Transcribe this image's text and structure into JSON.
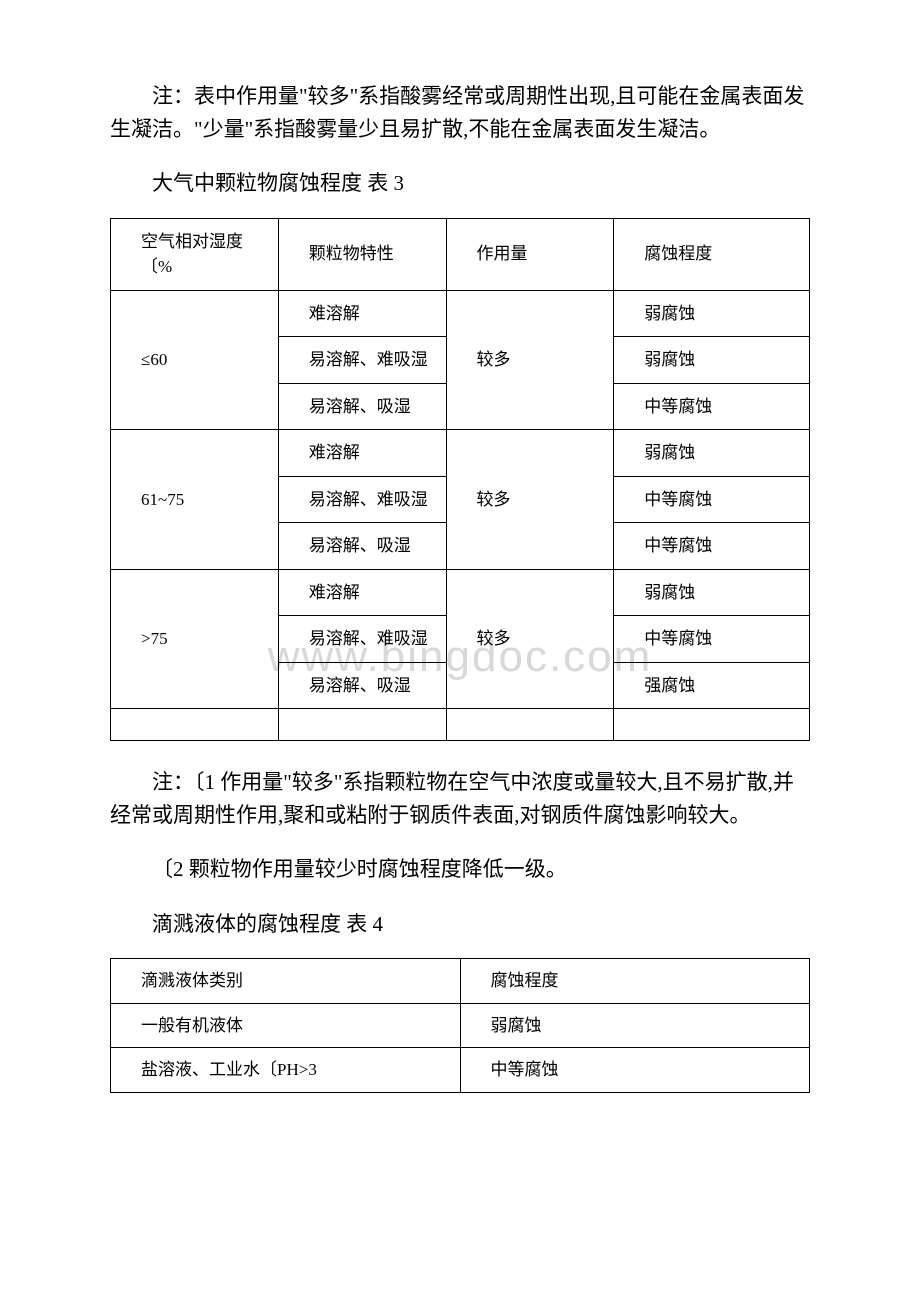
{
  "watermark": "www.bingdoc.com",
  "para1": "注：表中作用量\"较多\"系指酸雾经常或周期性出现,且可能在金属表面发生凝洁。\"少量\"系指酸雾量少且易扩散,不能在金属表面发生凝洁。",
  "table3_title": "大气中颗粒物腐蚀程度 表 3",
  "table3": {
    "headers": {
      "c1": "空气相对湿度〔%",
      "c2": "颗粒物特性",
      "c3": "作用量",
      "c4": "腐蚀程度"
    },
    "groups": [
      {
        "humidity": "≤60",
        "amount": "较多",
        "rows": [
          {
            "property": "难溶解",
            "degree": "弱腐蚀"
          },
          {
            "property": "易溶解、难吸湿",
            "degree": "弱腐蚀"
          },
          {
            "property": "易溶解、吸湿",
            "degree": "中等腐蚀"
          }
        ]
      },
      {
        "humidity": "61~75",
        "amount": "较多",
        "rows": [
          {
            "property": "难溶解",
            "degree": "弱腐蚀"
          },
          {
            "property": "易溶解、难吸湿",
            "degree": "中等腐蚀"
          },
          {
            "property": "易溶解、吸湿",
            "degree": "中等腐蚀"
          }
        ]
      },
      {
        "humidity": ">75",
        "amount": "较多",
        "rows": [
          {
            "property": "难溶解",
            "degree": "弱腐蚀"
          },
          {
            "property": "易溶解、难吸湿",
            "degree": "中等腐蚀"
          },
          {
            "property": "易溶解、吸湿",
            "degree": "强腐蚀"
          }
        ]
      }
    ]
  },
  "para2": "注：〔1 作用量\"较多\"系指颗粒物在空气中浓度或量较大,且不易扩散,并经常或周期性作用,聚和或粘附于钢质件表面,对钢质件腐蚀影响较大。",
  "para3": "〔2 颗粒物作用量较少时腐蚀程度降低一级。",
  "table4_title": "滴溅液体的腐蚀程度 表 4",
  "table4": {
    "headers": {
      "c1": "滴溅液体类别",
      "c2": "腐蚀程度"
    },
    "rows": [
      {
        "c1": "一般有机液体",
        "c2": "弱腐蚀"
      },
      {
        "c1": "盐溶液、工业水〔PH>3",
        "c2": "中等腐蚀"
      }
    ]
  }
}
